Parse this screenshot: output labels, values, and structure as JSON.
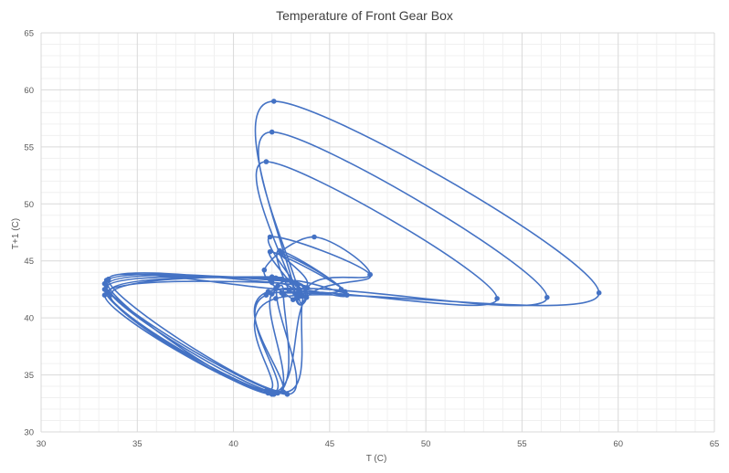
{
  "chart_data": {
    "type": "scatter",
    "style": "smoothed-lines-with-markers",
    "title": "Temperature of Front Gear Box",
    "xlabel": "T (C)",
    "ylabel": "T+1 (C)",
    "xlim": [
      30,
      65
    ],
    "ylim": [
      30,
      65
    ],
    "x_ticks": [
      "30",
      "35",
      "40",
      "45",
      "50",
      "55",
      "60",
      "65"
    ],
    "y_ticks": [
      "30",
      "35",
      "40",
      "45",
      "50",
      "55",
      "60",
      "65"
    ],
    "major_grid": true,
    "minor_grid": true,
    "legend": "none",
    "series_color": "#4472C4",
    "series": [
      {
        "points": [
          [
            42.2,
            42.6
          ],
          [
            42.6,
            42.0
          ],
          [
            42.0,
            33.3
          ],
          [
            33.3,
            42.5
          ],
          [
            42.5,
            43.4
          ],
          [
            43.4,
            42.0
          ],
          [
            42.0,
            56.3
          ],
          [
            56.3,
            41.8
          ],
          [
            41.8,
            42.3
          ],
          [
            42.3,
            33.4
          ],
          [
            33.4,
            42.8
          ],
          [
            42.8,
            43.3
          ],
          [
            43.3,
            41.7
          ],
          [
            41.7,
            53.7
          ],
          [
            53.7,
            41.7
          ],
          [
            41.7,
            42.0
          ],
          [
            42.0,
            33.5
          ],
          [
            33.5,
            42.2
          ],
          [
            42.2,
            43.5
          ],
          [
            43.5,
            41.9
          ],
          [
            41.9,
            45.8
          ],
          [
            45.8,
            42.3
          ],
          [
            42.3,
            42.8
          ],
          [
            42.8,
            33.3
          ],
          [
            33.3,
            43.0
          ],
          [
            43.0,
            43.2
          ],
          [
            43.2,
            42.1
          ],
          [
            42.1,
            59.0
          ],
          [
            59.0,
            42.2
          ],
          [
            42.2,
            41.7
          ],
          [
            41.7,
            33.6
          ],
          [
            33.6,
            42.0
          ],
          [
            42.0,
            43.6
          ],
          [
            43.6,
            41.9
          ],
          [
            41.9,
            47.1
          ],
          [
            47.1,
            43.8
          ],
          [
            43.8,
            41.8
          ],
          [
            41.8,
            33.4
          ],
          [
            33.4,
            43.3
          ],
          [
            43.3,
            42.9
          ],
          [
            42.9,
            42.4
          ],
          [
            42.4,
            45.9
          ],
          [
            45.9,
            42.0
          ],
          [
            42.0,
            42.1
          ],
          [
            42.1,
            33.3
          ],
          [
            33.3,
            42.0
          ],
          [
            42.0,
            43.1
          ],
          [
            43.1,
            41.6
          ],
          [
            41.6,
            44.2
          ],
          [
            44.2,
            47.1
          ],
          [
            47.1,
            43.8
          ],
          [
            43.8,
            42.6
          ],
          [
            42.6,
            33.5
          ],
          [
            33.5,
            43.4
          ],
          [
            43.4,
            42.5
          ],
          [
            42.5,
            45.6
          ],
          [
            45.6,
            42.5
          ],
          [
            42.5,
            42.2
          ]
        ]
      }
    ]
  }
}
